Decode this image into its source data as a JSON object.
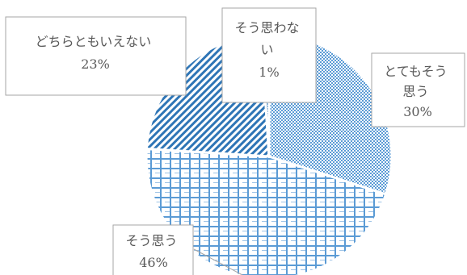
{
  "chart_data": {
    "type": "pie",
    "title": "",
    "slices": [
      {
        "label_lines": [
          "とてもそう",
          "思う"
        ],
        "percent_label": "30%",
        "value": 30,
        "pattern": "dots",
        "color": "#5B9BD5"
      },
      {
        "label_lines": [
          "そう思う"
        ],
        "percent_label": "46%",
        "value": 46,
        "pattern": "grid",
        "color": "#5B9BD5"
      },
      {
        "label_lines": [
          "どちらともいえない"
        ],
        "percent_label": "23%",
        "value": 23,
        "pattern": "diagonal",
        "color": "#2E75B6"
      },
      {
        "label_lines": [
          "そう思わな",
          "い"
        ],
        "percent_label": "1%",
        "value": 1,
        "pattern": "dense",
        "color": "#2E75B6"
      }
    ],
    "legend": "none"
  }
}
